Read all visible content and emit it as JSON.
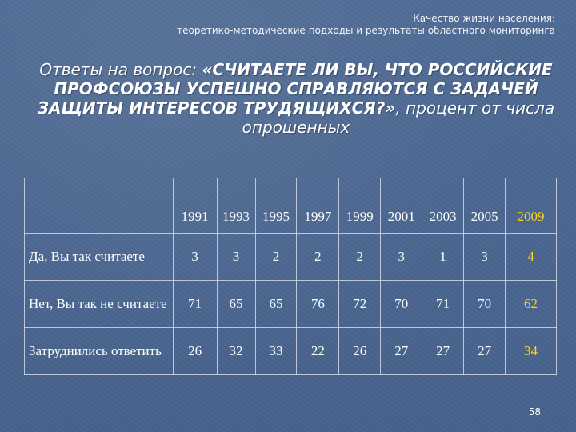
{
  "header": {
    "line1": "Качество жизни населения:",
    "line2": "теоретико-методические подходы и результаты областного мониторинга"
  },
  "title": {
    "prefix": "Ответы на вопрос: ",
    "question": "«СЧИТАЕТЕ ЛИ ВЫ, ЧТО РОССИЙСКИЕ ПРОФСОЮЗЫ УСПЕШНО СПРАВЛЯЮТСЯ С ЗАДАЧЕЙ ЗАЩИТЫ ИНТЕРЕСОВ ТРУДЯЩИХСЯ?»",
    "suffix": ", процент от числа опрошенных"
  },
  "table": {
    "years": [
      "1991",
      "1993",
      "1995",
      "1997",
      "1999",
      "2001",
      "2003",
      "2005",
      "2009"
    ],
    "rows": [
      {
        "label": "Да, Вы так считаете",
        "values": [
          "3",
          "3",
          "2",
          "2",
          "2",
          "3",
          "1",
          "3",
          "4"
        ]
      },
      {
        "label": "Нет, Вы так не считаете",
        "values": [
          "71",
          "65",
          "65",
          "76",
          "72",
          "70",
          "71",
          "70",
          "62"
        ]
      },
      {
        "label": "Затруднились ответить",
        "values": [
          "26",
          "32",
          "33",
          "22",
          "26",
          "27",
          "27",
          "27",
          "34"
        ]
      }
    ],
    "highlight_color": "#ffd21e"
  },
  "page_number": "58",
  "colors": {
    "background": "#4a6690",
    "text": "#ffffff",
    "accent": "#ffd21e"
  }
}
